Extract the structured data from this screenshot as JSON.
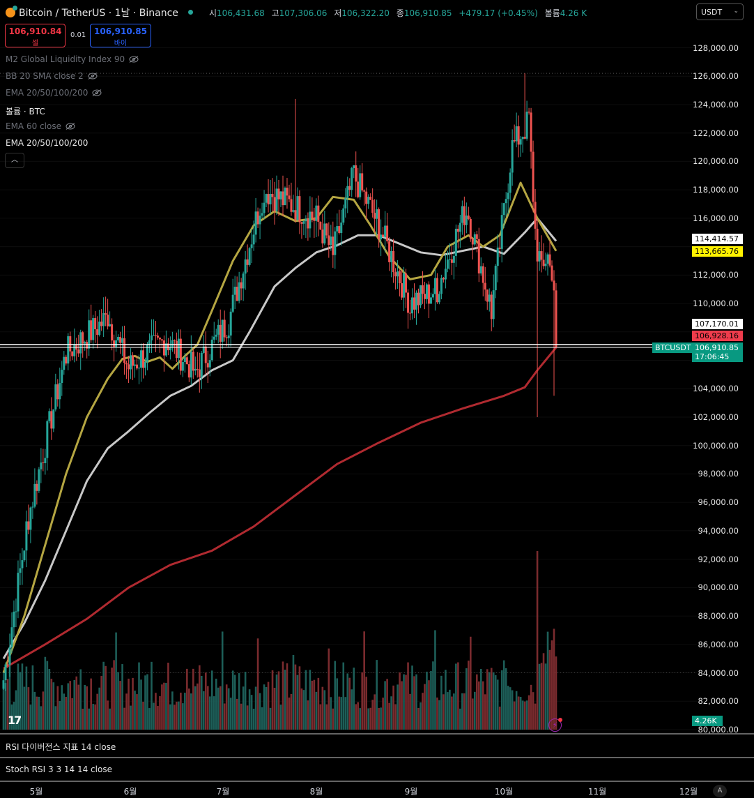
{
  "header": {
    "symbol": "Bitcoin / TetherUS · 1날 · Binance",
    "ohlc": {
      "open_label": "시",
      "open": "106,431.68",
      "high_label": "고",
      "high": "107,306.06",
      "low_label": "저",
      "low": "106,322.20",
      "close_label": "종",
      "close": "106,910.85",
      "change": "+479.17 (+0.45%)",
      "volume_label": "볼륨",
      "volume": "4.26 K"
    },
    "currency": "USDT"
  },
  "trade": {
    "sell_price": "106,910.84",
    "sell_label": "셀",
    "spread": "0.01",
    "buy_price": "106,910.85",
    "buy_label": "바이"
  },
  "indicators": [
    {
      "label": "M2 Global Liquidity Index 90",
      "hidden": true
    },
    {
      "label": "BB 20 SMA close 2",
      "hidden": true
    },
    {
      "label": "EMA 20/50/100/200",
      "hidden": true
    },
    {
      "label": "볼륨 · BTC",
      "hidden": false
    },
    {
      "label": "EMA 60 close",
      "hidden": true
    },
    {
      "label": "EMA 20/50/100/200",
      "hidden": false
    }
  ],
  "price_axis": [
    "128,000.00",
    "126,000.00",
    "124,000.00",
    "122,000.00",
    "120,000.00",
    "118,000.00",
    "116,000.00",
    "112,000.00",
    "110,000.00",
    "104,000.00",
    "102,000.00",
    "100,000.00",
    "98,000.00",
    "96,000.00",
    "94,000.00",
    "92,000.00",
    "90,000.00",
    "88,000.00",
    "86,000.00",
    "84,000.00",
    "82,000.00",
    "80,000.00"
  ],
  "price_tags": {
    "ema_white": "114,414.57",
    "ema_yellow": "113,665.76",
    "high_marker": "107,170.01",
    "ema_red": "106,928.16",
    "last_price": "106,910.85",
    "countdown": "17:06:45",
    "symbol_tag": "BTCUSDT"
  },
  "volume_tag": "4.26K",
  "panes": {
    "rsi": "RSI 다이버전스 지표 14 close",
    "stoch": "Stoch RSI 3 3 14 14 close"
  },
  "time_axis": [
    "5월",
    "6월",
    "7월",
    "8월",
    "9월",
    "10월",
    "11월",
    "12월"
  ],
  "auto_button": "A",
  "colors": {
    "up": "#26a69a",
    "down": "#ef5350",
    "ema_yellow": "#b5a642",
    "ema_white": "#c8c8c8",
    "ema_red": "#b02a30"
  },
  "chart_data": {
    "type": "candlestick",
    "symbol": "BTCUSDT",
    "interval": "1D",
    "ylim": [
      80000,
      129000
    ],
    "x_range": [
      "2025-04-21",
      "2025-10-20"
    ],
    "last": 106910.85,
    "ema_lines": {
      "yellow": [
        [
          0,
          84000
        ],
        [
          10,
          88000
        ],
        [
          20,
          93000
        ],
        [
          30,
          98000
        ],
        [
          40,
          102000
        ],
        [
          50,
          104700
        ],
        [
          57,
          106100
        ],
        [
          63,
          106300
        ],
        [
          69,
          105900
        ],
        [
          75,
          106200
        ],
        [
          81,
          105400
        ],
        [
          87,
          106300
        ],
        [
          93,
          107100
        ],
        [
          100,
          109500
        ],
        [
          110,
          113000
        ],
        [
          120,
          115500
        ],
        [
          130,
          116500
        ],
        [
          140,
          115800
        ],
        [
          150,
          116000
        ],
        [
          158,
          117500
        ],
        [
          168,
          117300
        ],
        [
          176,
          115500
        ],
        [
          185,
          113300
        ],
        [
          195,
          111700
        ],
        [
          205,
          112000
        ],
        [
          213,
          114000
        ],
        [
          223,
          114800
        ],
        [
          230,
          114000
        ],
        [
          238,
          114800
        ],
        [
          248,
          118500
        ],
        [
          256,
          116000
        ],
        [
          265,
          113700
        ]
      ],
      "white": [
        [
          0,
          85000
        ],
        [
          10,
          87500
        ],
        [
          20,
          90500
        ],
        [
          30,
          94000
        ],
        [
          40,
          97500
        ],
        [
          50,
          99800
        ],
        [
          60,
          101000
        ],
        [
          70,
          102300
        ],
        [
          80,
          103500
        ],
        [
          90,
          104200
        ],
        [
          100,
          105300
        ],
        [
          110,
          106000
        ],
        [
          118,
          108000
        ],
        [
          130,
          111200
        ],
        [
          140,
          112500
        ],
        [
          150,
          113600
        ],
        [
          160,
          114100
        ],
        [
          170,
          114800
        ],
        [
          180,
          114800
        ],
        [
          190,
          114200
        ],
        [
          200,
          113600
        ],
        [
          210,
          113400
        ],
        [
          220,
          113700
        ],
        [
          230,
          114000
        ],
        [
          240,
          113500
        ],
        [
          250,
          115000
        ],
        [
          256,
          116000
        ],
        [
          265,
          114400
        ]
      ],
      "red": [
        [
          0,
          84300
        ],
        [
          20,
          86000
        ],
        [
          40,
          87800
        ],
        [
          60,
          90000
        ],
        [
          80,
          91600
        ],
        [
          100,
          92600
        ],
        [
          120,
          94300
        ],
        [
          140,
          96500
        ],
        [
          160,
          98700
        ],
        [
          180,
          100200
        ],
        [
          200,
          101600
        ],
        [
          220,
          102600
        ],
        [
          240,
          103500
        ],
        [
          250,
          104100
        ],
        [
          256,
          105300
        ],
        [
          265,
          106900
        ]
      ]
    },
    "ohlc_segments": [
      {
        "from": 0,
        "to": 12,
        "start": 83500,
        "end": 95000
      },
      {
        "from": 12,
        "to": 30,
        "start": 95000,
        "end": 106500
      },
      {
        "from": 30,
        "to": 50,
        "start": 106500,
        "end": 109000
      },
      {
        "from": 50,
        "to": 60,
        "start": 109000,
        "end": 105500
      },
      {
        "from": 60,
        "to": 78,
        "start": 105500,
        "end": 107500
      },
      {
        "from": 78,
        "to": 92,
        "start": 107500,
        "end": 105200
      },
      {
        "from": 92,
        "to": 108,
        "start": 105200,
        "end": 108800
      },
      {
        "from": 108,
        "to": 125,
        "start": 108800,
        "end": 118000
      },
      {
        "from": 125,
        "to": 150,
        "start": 118000,
        "end": 116000
      },
      {
        "from": 150,
        "to": 158,
        "start": 116000,
        "end": 113500
      },
      {
        "from": 158,
        "to": 168,
        "start": 113500,
        "end": 119000
      },
      {
        "from": 168,
        "to": 180,
        "start": 119000,
        "end": 115500
      },
      {
        "from": 180,
        "to": 195,
        "start": 115500,
        "end": 110000
      },
      {
        "from": 195,
        "to": 208,
        "start": 110000,
        "end": 111000
      },
      {
        "from": 208,
        "to": 222,
        "start": 111000,
        "end": 116800
      },
      {
        "from": 222,
        "to": 234,
        "start": 116800,
        "end": 109500
      },
      {
        "from": 234,
        "to": 244,
        "start": 109500,
        "end": 121000
      },
      {
        "from": 244,
        "to": 252,
        "start": 121000,
        "end": 122800
      },
      {
        "from": 252,
        "to": 256,
        "start": 122800,
        "end": 112500
      },
      {
        "from": 256,
        "to": 262,
        "start": 112500,
        "end": 113500
      },
      {
        "from": 262,
        "to": 266,
        "start": 113500,
        "end": 106900
      }
    ],
    "volume_spike": {
      "index": 256,
      "relative": 1.0
    }
  }
}
